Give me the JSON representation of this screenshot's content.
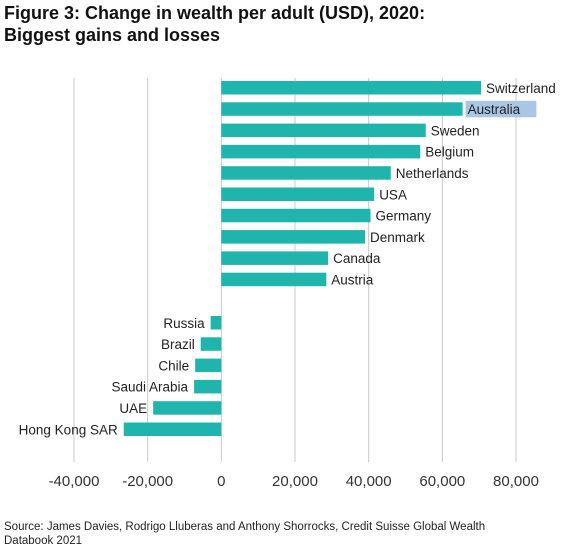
{
  "title": {
    "line1": "Figure 3: Change in wealth per adult (USD), 2020:",
    "line2": "Biggest gains and losses"
  },
  "source": {
    "line1": "Source: James Davies, Rodrigo Lluberas and Anthony Shorrocks, Credit Suisse Global Wealth",
    "line2": "Databook 2021"
  },
  "chart_data": {
    "type": "bar",
    "orientation": "horizontal",
    "title": "Figure 3: Change in wealth per adult (USD), 2020: Biggest gains and losses",
    "xlabel": "",
    "ylabel": "",
    "xlim": [
      -40000,
      80000
    ],
    "xticks": [
      -40000,
      -20000,
      0,
      20000,
      40000,
      60000,
      80000
    ],
    "xtick_labels": [
      "-40,000",
      "-20,000",
      "0",
      "20,000",
      "40,000",
      "60,000",
      "80,000"
    ],
    "grid": true,
    "bar_color": "#1fb5ac",
    "highlight_color": "#a9c6e3",
    "highlighted_category": "Australia",
    "gains": [
      {
        "label": "Switzerland",
        "value": 70500
      },
      {
        "label": "Australia",
        "value": 65500
      },
      {
        "label": "Sweden",
        "value": 55500
      },
      {
        "label": "Belgium",
        "value": 54000
      },
      {
        "label": "Netherlands",
        "value": 46000
      },
      {
        "label": "USA",
        "value": 41500
      },
      {
        "label": "Germany",
        "value": 40500
      },
      {
        "label": "Denmark",
        "value": 39000
      },
      {
        "label": "Canada",
        "value": 29000
      },
      {
        "label": "Austria",
        "value": 28500
      }
    ],
    "losses": [
      {
        "label": "Russia",
        "value": -2900
      },
      {
        "label": "Brazil",
        "value": -5600
      },
      {
        "label": "Chile",
        "value": -7100
      },
      {
        "label": "Saudi Arabia",
        "value": -7400
      },
      {
        "label": "UAE",
        "value": -18500
      },
      {
        "label": "Hong Kong SAR",
        "value": -26500
      }
    ]
  }
}
